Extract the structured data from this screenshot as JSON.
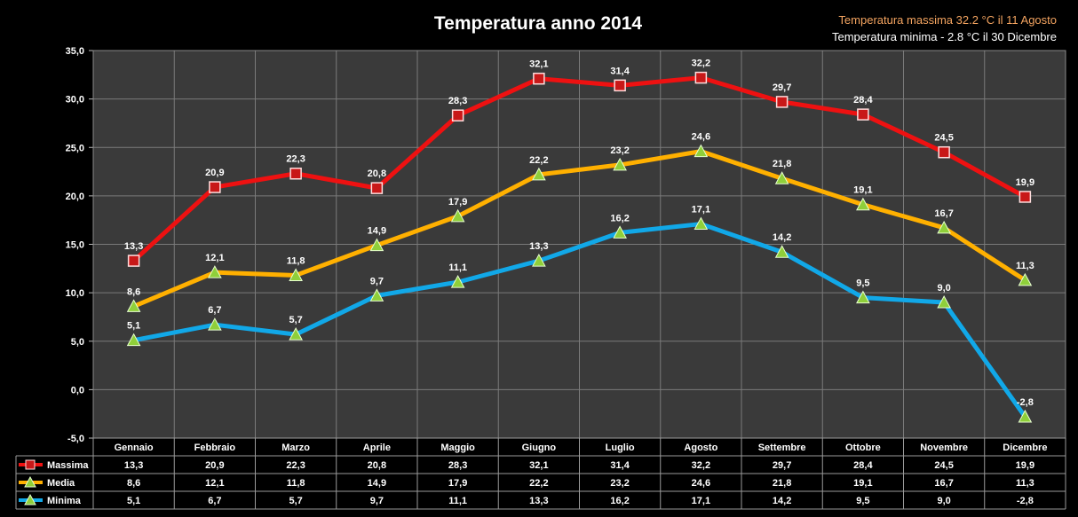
{
  "notes": {
    "max": "Temperatura  massima 32.2 °C  il  11 Agosto",
    "min": "Temperatura  minima  - 2.8 °C il 30 Dicembre"
  },
  "chart_data": {
    "type": "line",
    "title": "Temperatura anno 2014",
    "categories": [
      "Gennaio",
      "Febbraio",
      "Marzo",
      "Aprile",
      "Maggio",
      "Giugno",
      "Luglio",
      "Agosto",
      "Settembre",
      "Ottobre",
      "Novembre",
      "Dicembre"
    ],
    "ylim": [
      -5,
      35
    ],
    "yticks": [
      "-5,0",
      "0,0",
      "5,0",
      "10,0",
      "15,0",
      "20,0",
      "25,0",
      "30,0",
      "35,0"
    ],
    "grid": true,
    "legend": "data-table-left",
    "series": [
      {
        "name": "Massima",
        "color": "#ee1111",
        "marker": "square",
        "values": [
          13.3,
          20.9,
          22.3,
          20.8,
          28.3,
          32.1,
          31.4,
          32.2,
          29.7,
          28.4,
          24.5,
          19.9
        ],
        "labels": [
          "13,3",
          "20,9",
          "22,3",
          "20,8",
          "28,3",
          "32,1",
          "31,4",
          "32,2",
          "29,7",
          "28,4",
          "24,5",
          "19,9"
        ]
      },
      {
        "name": "Media",
        "color": "#ffb000",
        "marker": "triangle",
        "values": [
          8.6,
          12.1,
          11.8,
          14.9,
          17.9,
          22.2,
          23.2,
          24.6,
          21.8,
          19.1,
          16.7,
          11.3
        ],
        "labels": [
          "8,6",
          "12,1",
          "11,8",
          "14,9",
          "17,9",
          "22,2",
          "23,2",
          "24,6",
          "21,8",
          "19,1",
          "16,7",
          "11,3"
        ]
      },
      {
        "name": "Minima",
        "color": "#11a8e8",
        "marker": "triangle",
        "values": [
          5.1,
          6.7,
          5.7,
          9.7,
          11.1,
          13.3,
          16.2,
          17.1,
          14.2,
          9.5,
          9.0,
          -2.8
        ],
        "labels": [
          "5,1",
          "6,7",
          "5,7",
          "9,7",
          "11,1",
          "13,3",
          "16,2",
          "17,1",
          "14,2",
          "9,5",
          "9,0",
          "-2,8"
        ]
      }
    ]
  }
}
